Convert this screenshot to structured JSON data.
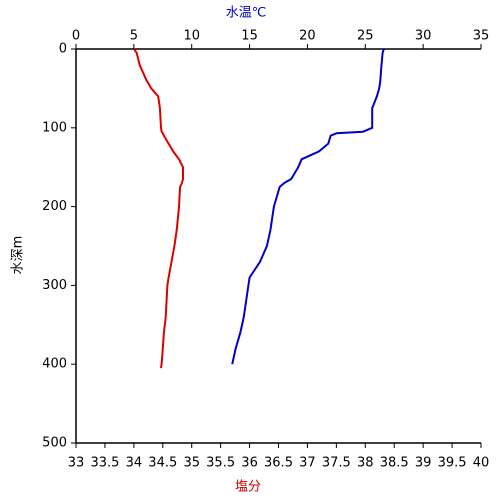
{
  "chart_data": {
    "type": "profile",
    "xlabel": "塩分",
    "x2label": "水温℃",
    "ylabel": "水深m",
    "xlabel_color": "#cc0000",
    "x2label_color": "#0000cc",
    "y": [
      0,
      5,
      20,
      40,
      50,
      60,
      75,
      100,
      105,
      107,
      110,
      120,
      130,
      140,
      150,
      165,
      170,
      175,
      200,
      230,
      250,
      270,
      290,
      300,
      340,
      360,
      380,
      400,
      405
    ],
    "series": [
      {
        "name": "塩分",
        "color": "#dd0000",
        "axis": "x",
        "values": [
          34.0,
          34.05,
          34.1,
          34.22,
          34.3,
          34.42,
          34.45,
          34.47,
          34.48,
          34.5,
          34.52,
          34.6,
          34.68,
          34.78,
          34.85,
          34.85,
          34.83,
          34.8,
          34.78,
          34.74,
          34.7,
          34.65,
          34.6,
          34.58,
          34.55,
          34.52,
          34.5,
          34.48,
          34.47
        ]
      },
      {
        "name": "水温℃",
        "color": "#0000cc",
        "axis": "x2",
        "values": [
          26.6,
          26.5,
          26.4,
          26.3,
          26.2,
          26.0,
          25.6,
          25.6,
          24.8,
          22.5,
          22.0,
          21.8,
          21.0,
          19.5,
          19.2,
          18.6,
          18.0,
          17.6,
          17.1,
          16.8,
          16.5,
          15.9,
          15.0,
          14.9,
          14.5,
          14.2,
          13.8,
          13.5,
          null
        ]
      }
    ],
    "xlim": [
      33,
      40
    ],
    "xticks": [
      33,
      33.5,
      34,
      34.5,
      35,
      35.5,
      36,
      36.5,
      37,
      37.5,
      38,
      38.5,
      39,
      39.5,
      40
    ],
    "x2lim": [
      0,
      35
    ],
    "x2ticks": [
      0,
      5,
      10,
      15,
      20,
      25,
      30,
      35
    ],
    "ylim": [
      0,
      500
    ],
    "yticks": [
      0,
      100,
      200,
      300,
      400,
      500
    ],
    "y_inverted": true
  }
}
